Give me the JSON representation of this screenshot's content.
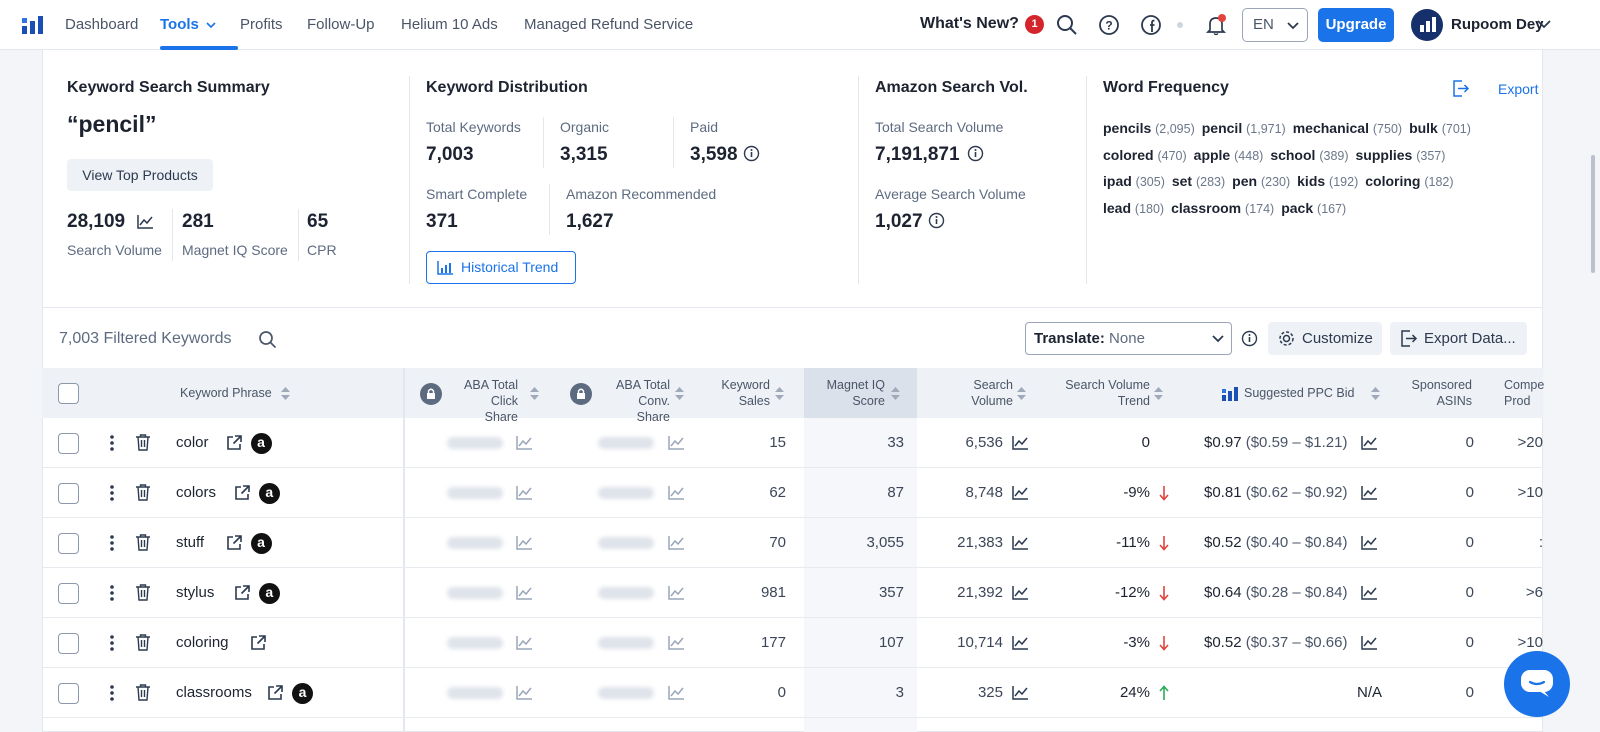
{
  "nav": {
    "items": [
      "Dashboard",
      "Tools",
      "Profits",
      "Follow-Up",
      "Helium 10 Ads",
      "Managed Refund Service"
    ],
    "whats_new": "What's New?",
    "notif_count": "1",
    "lang": "EN",
    "upgrade": "Upgrade",
    "user": "Rupoom Dey"
  },
  "summary": {
    "title": "Keyword Search Summary",
    "keyword": "“pencil”",
    "view_top": "View Top Products",
    "search_volume": "28,109",
    "search_volume_label": "Search Volume",
    "magnet_iq": "281",
    "magnet_iq_label": "Magnet IQ Score",
    "cpr": "65",
    "cpr_label": "CPR"
  },
  "distribution": {
    "title": "Keyword Distribution",
    "total_label": "Total Keywords",
    "total": "7,003",
    "organic_label": "Organic",
    "organic": "3,315",
    "paid_label": "Paid",
    "paid": "3,598",
    "smart_label": "Smart Complete",
    "smart": "371",
    "amazon_label": "Amazon Recommended",
    "amazon": "1,627",
    "historical": "Historical Trend"
  },
  "amazon_vol": {
    "title": "Amazon Search Vol.",
    "total_label": "Total Search Volume",
    "total": "7,191,871",
    "avg_label": "Average Search Volume",
    "avg": "1,027"
  },
  "word_freq": {
    "title": "Word Frequency",
    "export": "Export",
    "rows": [
      [
        [
          "pencils",
          "(2,095)"
        ],
        [
          "pencil",
          "(1,971)"
        ],
        [
          "mechanical",
          "(750)"
        ],
        [
          "bulk",
          "(701)"
        ]
      ],
      [
        [
          "colored",
          "(470)"
        ],
        [
          "apple",
          "(448)"
        ],
        [
          "school",
          "(389)"
        ],
        [
          "supplies",
          "(357)"
        ]
      ],
      [
        [
          "ipad",
          "(305)"
        ],
        [
          "set",
          "(283)"
        ],
        [
          "pen",
          "(230)"
        ],
        [
          "kids",
          "(192)"
        ],
        [
          "coloring",
          "(182)"
        ]
      ],
      [
        [
          "lead",
          "(180)"
        ],
        [
          "classroom",
          "(174)"
        ],
        [
          "pack",
          "(167)"
        ]
      ]
    ]
  },
  "filter": {
    "count_label": "7,003 Filtered Keywords",
    "translate_label": "Translate:",
    "translate_value": "None",
    "customize": "Customize",
    "export_data": "Export Data..."
  },
  "table": {
    "headers": {
      "phrase": "Keyword Phrase",
      "aba_click_1": "ABA Total",
      "aba_click_2": "Click Share",
      "aba_conv_1": "ABA Total",
      "aba_conv_2": "Conv. Share",
      "kw_sales_1": "Keyword",
      "kw_sales_2": "Sales",
      "magnet_1": "Magnet IQ",
      "magnet_2": "Score",
      "sv_1": "Search",
      "sv_2": "Volume",
      "svt_1": "Search Volume",
      "svt_2": "Trend",
      "ppc": "Suggested PPC Bid",
      "asins_1": "Sponsored",
      "asins_2": "ASINs",
      "comp_1": "Compe",
      "comp_2": "Prod"
    },
    "rows": [
      {
        "phrase": "color",
        "amazon": true,
        "sales": "15",
        "magnet": "33",
        "volume": "6,536",
        "trend": "0",
        "dir": "none",
        "ppc_main": "$0.97",
        "ppc_range": "($0.59 – $1.21)",
        "asins": "0",
        "comp": ">20"
      },
      {
        "phrase": "colors",
        "amazon": true,
        "sales": "62",
        "magnet": "87",
        "volume": "8,748",
        "trend": "-9%",
        "dir": "down",
        "ppc_main": "$0.81",
        "ppc_range": "($0.62 – $0.92)",
        "asins": "0",
        "comp": ">10"
      },
      {
        "phrase": "stuff",
        "amazon": true,
        "sales": "70",
        "magnet": "3,055",
        "volume": "21,383",
        "trend": "-11%",
        "dir": "down",
        "ppc_main": "$0.52",
        "ppc_range": "($0.40 – $0.84)",
        "asins": "0",
        "comp": ":"
      },
      {
        "phrase": "stylus",
        "amazon": true,
        "sales": "981",
        "magnet": "357",
        "volume": "21,392",
        "trend": "-12%",
        "dir": "down",
        "ppc_main": "$0.64",
        "ppc_range": "($0.28 – $0.84)",
        "asins": "0",
        "comp": ">6"
      },
      {
        "phrase": "coloring",
        "amazon": false,
        "sales": "177",
        "magnet": "107",
        "volume": "10,714",
        "trend": "-3%",
        "dir": "down",
        "ppc_main": "$0.52",
        "ppc_range": "($0.37 – $0.66)",
        "asins": "0",
        "comp": ">10"
      },
      {
        "phrase": "classrooms",
        "amazon": true,
        "sales": "0",
        "magnet": "3",
        "volume": "325",
        "trend": "24%",
        "dir": "up",
        "ppc_main": "N/A",
        "ppc_range": "",
        "asins": "0",
        "comp": ""
      }
    ],
    "amazon_glyph": "a"
  },
  "colors": {
    "accent": "#1a73e8",
    "down": "#e0443c",
    "up": "#2eaa5c"
  }
}
